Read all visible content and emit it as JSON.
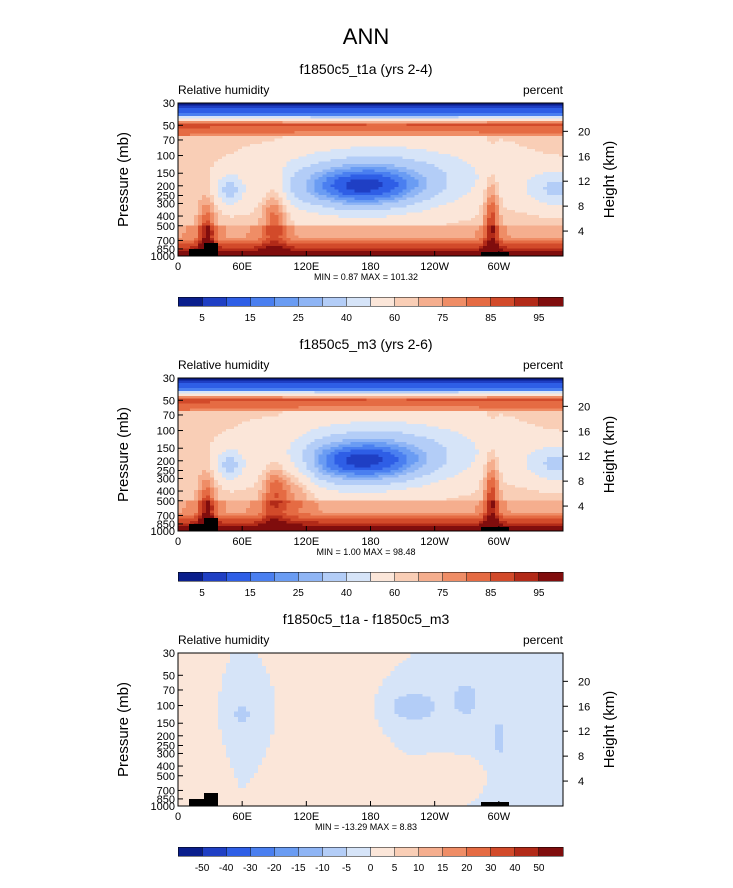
{
  "page_title": "ANN",
  "chart_data": [
    {
      "type": "heatmap",
      "title": "f1850c5_t1a (yrs 2-4)",
      "left_label": "Relative humidity",
      "right_label": "percent",
      "ylabel": "Pressure (mb)",
      "y2label": "Height (km)",
      "x_ticks": [
        "0",
        "60E",
        "120E",
        "180",
        "120W",
        "60W"
      ],
      "y_ticks": [
        "30",
        "50",
        "70",
        "100",
        "150",
        "200",
        "250",
        "300",
        "400",
        "500",
        "700",
        "850",
        "1000"
      ],
      "y2_ticks": [
        "20",
        "16",
        "12",
        "8",
        "4"
      ],
      "stats": "MIN =   0.87  MAX = 101.32",
      "legend_labels": [
        "5",
        "15",
        "25",
        "40",
        "60",
        "75",
        "85",
        "95"
      ],
      "colors": [
        "#0a1e8c",
        "#1f3fc4",
        "#2e5ee6",
        "#4a7ff0",
        "#6a9cf3",
        "#8fb5f5",
        "#b3cdf7",
        "#d6e4f8",
        "#fbe6d9",
        "#f9ceb6",
        "#f5ae8e",
        "#ef8d66",
        "#e56b43",
        "#d24a2a",
        "#b22a18",
        "#800d0d"
      ],
      "field": "base"
    },
    {
      "type": "heatmap",
      "title": "f1850c5_m3 (yrs 2-6)",
      "left_label": "Relative humidity",
      "right_label": "percent",
      "ylabel": "Pressure (mb)",
      "y2label": "Height (km)",
      "x_ticks": [
        "0",
        "60E",
        "120E",
        "180",
        "120W",
        "60W"
      ],
      "y_ticks": [
        "30",
        "50",
        "70",
        "100",
        "150",
        "200",
        "250",
        "300",
        "400",
        "500",
        "700",
        "850",
        "1000"
      ],
      "y2_ticks": [
        "20",
        "16",
        "12",
        "8",
        "4"
      ],
      "stats": "MIN =   1.00  MAX =  98.48",
      "legend_labels": [
        "5",
        "15",
        "25",
        "40",
        "60",
        "75",
        "85",
        "95"
      ],
      "colors": [
        "#0a1e8c",
        "#1f3fc4",
        "#2e5ee6",
        "#4a7ff0",
        "#6a9cf3",
        "#8fb5f5",
        "#b3cdf7",
        "#d6e4f8",
        "#fbe6d9",
        "#f9ceb6",
        "#f5ae8e",
        "#ef8d66",
        "#e56b43",
        "#d24a2a",
        "#b22a18",
        "#800d0d"
      ],
      "field": "base2"
    },
    {
      "type": "heatmap",
      "title": "f1850c5_t1a - f1850c5_m3",
      "left_label": "Relative humidity",
      "right_label": "percent",
      "ylabel": "Pressure (mb)",
      "y2label": "Height (km)",
      "x_ticks": [
        "0",
        "60E",
        "120E",
        "180",
        "120W",
        "60W"
      ],
      "y_ticks": [
        "30",
        "50",
        "70",
        "100",
        "150",
        "200",
        "250",
        "300",
        "400",
        "500",
        "700",
        "850",
        "1000"
      ],
      "y2_ticks": [
        "20",
        "16",
        "12",
        "8",
        "4"
      ],
      "stats": "MIN = -13.29  MAX =   8.83",
      "legend_labels": [
        "-50",
        "-40",
        "-30",
        "-20",
        "-15",
        "-10",
        "-5",
        "0",
        "5",
        "10",
        "15",
        "20",
        "30",
        "40",
        "50"
      ],
      "colors": [
        "#0a1e8c",
        "#1f3fc4",
        "#2e5ee6",
        "#4a7ff0",
        "#6a9cf3",
        "#8fb5f5",
        "#b3cdf7",
        "#d6e4f8",
        "#fbe6d9",
        "#f9ceb6",
        "#f5ae8e",
        "#ef8d66",
        "#e56b43",
        "#d24a2a",
        "#b22a18",
        "#800d0d"
      ],
      "field": "diff"
    }
  ]
}
